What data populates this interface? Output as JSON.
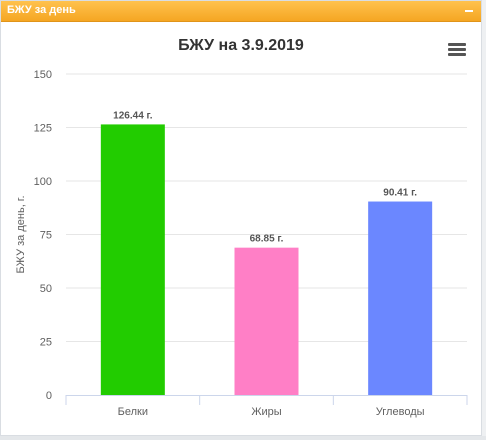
{
  "widget": {
    "title": "БЖУ за день",
    "collapse_icon": "minus-icon",
    "header_color": "#f5a623"
  },
  "chart_data": {
    "type": "bar",
    "title": "БЖУ на 3.9.2019",
    "ylabel": "БЖУ за день, г.",
    "xlabel": "",
    "ylim": [
      0,
      150
    ],
    "yticks": [
      0,
      25,
      50,
      75,
      100,
      125,
      150
    ],
    "grid": true,
    "legend": "none",
    "categories": [
      "Белки",
      "Жиры",
      "Углеводы"
    ],
    "values": [
      126.44,
      68.85,
      90.41
    ],
    "data_labels": [
      "126.44 г.",
      "68.85 г.",
      "90.41 г."
    ],
    "colors": [
      "#22cc00",
      "#ff7fc6",
      "#6b87ff"
    ],
    "menu_icon": "hamburger-menu-icon"
  }
}
